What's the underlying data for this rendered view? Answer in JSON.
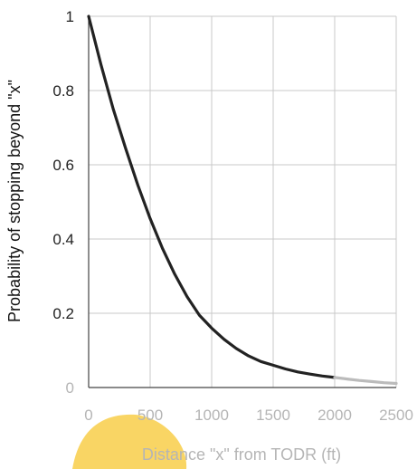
{
  "chart_data": {
    "type": "line",
    "title": "",
    "xlabel": "Distance \"x\" from TODR (ft)",
    "ylabel": "Probability of stopping beyond \"x\"",
    "xlim": [
      0,
      2500
    ],
    "ylim": [
      0,
      1
    ],
    "x_ticks": [
      "0",
      "500",
      "1000",
      "1500",
      "2000",
      "2500"
    ],
    "y_ticks": [
      "0",
      "0.2",
      "0.4",
      "0.6",
      "0.8",
      "1"
    ],
    "grid": true,
    "legend": "none",
    "series": [
      {
        "color": "#222222",
        "x": [
          0,
          100,
          200,
          300,
          400,
          500,
          600,
          700,
          800,
          900,
          1000,
          1100,
          1200,
          1300,
          1400,
          1500,
          1600,
          1700,
          1800,
          1900,
          2000
        ],
        "y": [
          1.0,
          0.87,
          0.75,
          0.645,
          0.545,
          0.455,
          0.375,
          0.305,
          0.245,
          0.195,
          0.16,
          0.13,
          0.105,
          0.085,
          0.07,
          0.06,
          0.05,
          0.042,
          0.036,
          0.031,
          0.027
        ]
      },
      {
        "color": "#bbbbbb",
        "x": [
          2000,
          2100,
          2200,
          2300,
          2400,
          2500
        ],
        "y": [
          0.027,
          0.023,
          0.019,
          0.016,
          0.013,
          0.011
        ]
      }
    ]
  },
  "decor": {
    "blob_color": "#f9d564"
  }
}
